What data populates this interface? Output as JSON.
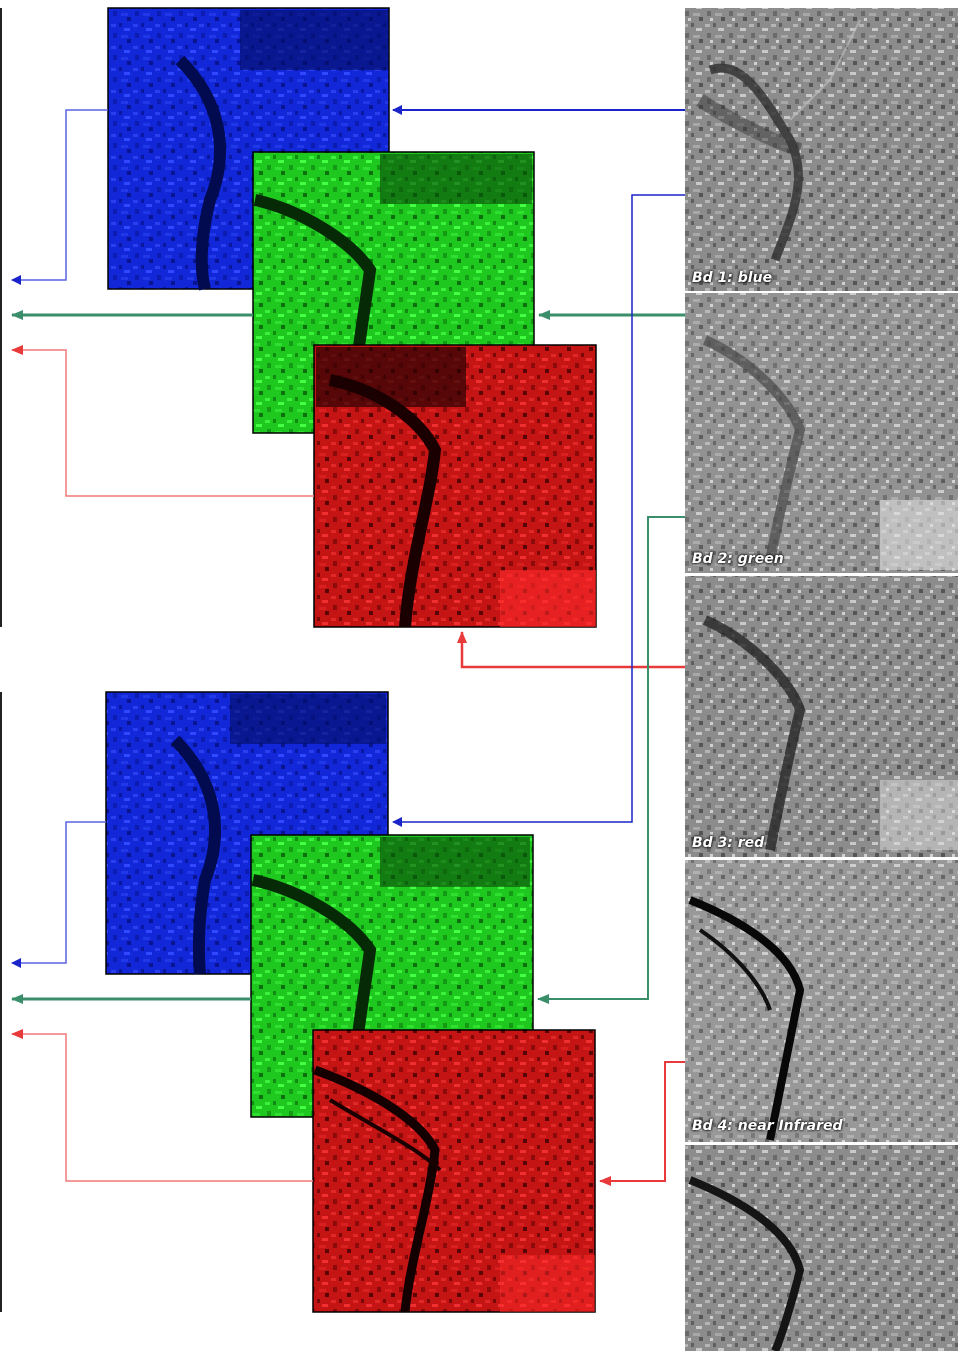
{
  "bands": [
    {
      "id": "bd1",
      "label": "Bd 1: blue"
    },
    {
      "id": "bd2",
      "label": "Bd 2: green"
    },
    {
      "id": "bd3",
      "label": "Bd 3: red"
    },
    {
      "id": "bd4",
      "label": "Bd 4: near Infrared"
    },
    {
      "id": "bd5",
      "label": ""
    }
  ],
  "composites": [
    {
      "id": "true-color",
      "channels": [
        {
          "channel": "blue",
          "color": "#0014e6",
          "source_band": "Bd 1: blue"
        },
        {
          "channel": "green",
          "color": "#14e614",
          "source_band": "Bd 2: green"
        },
        {
          "channel": "red",
          "color": "#e61414",
          "source_band": "Bd 3: red"
        }
      ]
    },
    {
      "id": "false-color",
      "channels": [
        {
          "channel": "blue",
          "color": "#0014e6",
          "source_band": "Bd 2: green"
        },
        {
          "channel": "green",
          "color": "#14e614",
          "source_band": "Bd 3: red"
        },
        {
          "channel": "red",
          "color": "#e61414",
          "source_band": "Bd 4: near Infrared"
        }
      ]
    }
  ],
  "colors": {
    "blue_arrow": "#1a24c8",
    "green_arrow": "#3a8f6a",
    "red_arrow": "#e83a3a",
    "blue_thin": "#5a62e0",
    "green_thin": "#5aa080",
    "red_thin": "#f07878"
  }
}
